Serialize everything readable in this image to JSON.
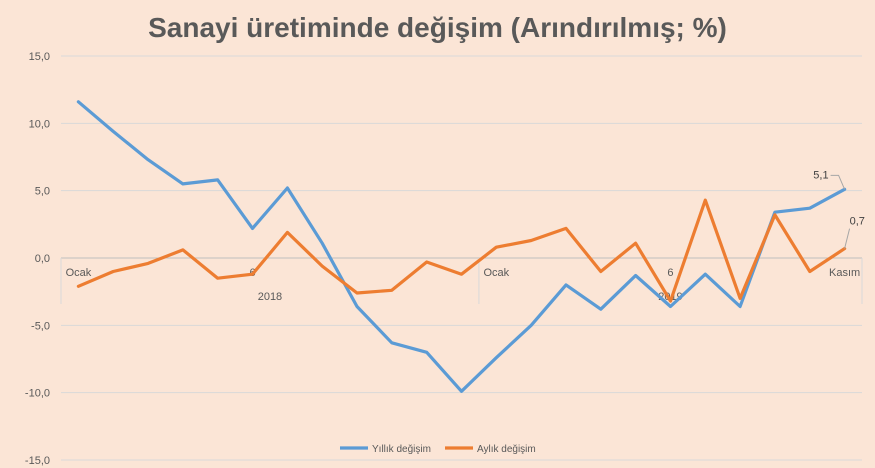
{
  "chart_data": {
    "type": "line",
    "title": "Sanayi üretiminde değişim (Arındırılmış; %)",
    "xlabel": "",
    "ylabel": "",
    "ylim": [
      -15,
      15
    ],
    "yticks": [
      15,
      10,
      5,
      0,
      -5,
      -10,
      -15
    ],
    "ytick_labels": [
      "15,0",
      "10,0",
      "5,0",
      "0,0",
      "-5,0",
      "-10,0",
      "-15,0"
    ],
    "grid": "horizontal",
    "legend_position": "bottom",
    "x_labels": [
      {
        "index": 0,
        "text": "Ocak"
      },
      {
        "index": 5,
        "text": "6"
      },
      {
        "index": 12,
        "text": "Ocak"
      },
      {
        "index": 17,
        "text": "6"
      },
      {
        "index": 22,
        "text": "Kasım"
      }
    ],
    "year_labels": [
      {
        "center_index": 5.5,
        "text": "2018"
      },
      {
        "center_index": 17,
        "text": "2019"
      }
    ],
    "categories": [
      "2018-01",
      "2018-02",
      "2018-03",
      "2018-04",
      "2018-05",
      "2018-06",
      "2018-07",
      "2018-08",
      "2018-09",
      "2018-10",
      "2018-11",
      "2018-12",
      "2019-01",
      "2019-02",
      "2019-03",
      "2019-04",
      "2019-05",
      "2019-06",
      "2019-07",
      "2019-08",
      "2019-09",
      "2019-10",
      "2019-11"
    ],
    "series": [
      {
        "name": "Yıllık değişim",
        "color": "#5b9bd5",
        "values": [
          11.6,
          9.4,
          7.3,
          5.5,
          5.8,
          2.2,
          5.2,
          1.1,
          -3.6,
          -6.3,
          -7.0,
          -9.9,
          -7.4,
          -5.0,
          -2.0,
          -3.8,
          -1.3,
          -3.6,
          -1.2,
          -3.6,
          3.4,
          3.7,
          5.1
        ],
        "end_label": "5,1"
      },
      {
        "name": "Aylık değişim",
        "color": "#ed7d31",
        "values": [
          -2.1,
          -1.0,
          -0.4,
          0.6,
          -1.5,
          -1.2,
          1.9,
          -0.6,
          -2.6,
          -2.4,
          -0.3,
          -1.2,
          0.8,
          1.3,
          2.2,
          -1.0,
          1.1,
          -3.2,
          4.3,
          -3.0,
          3.2,
          -1.0,
          0.7
        ],
        "end_label": "0,7"
      }
    ]
  }
}
